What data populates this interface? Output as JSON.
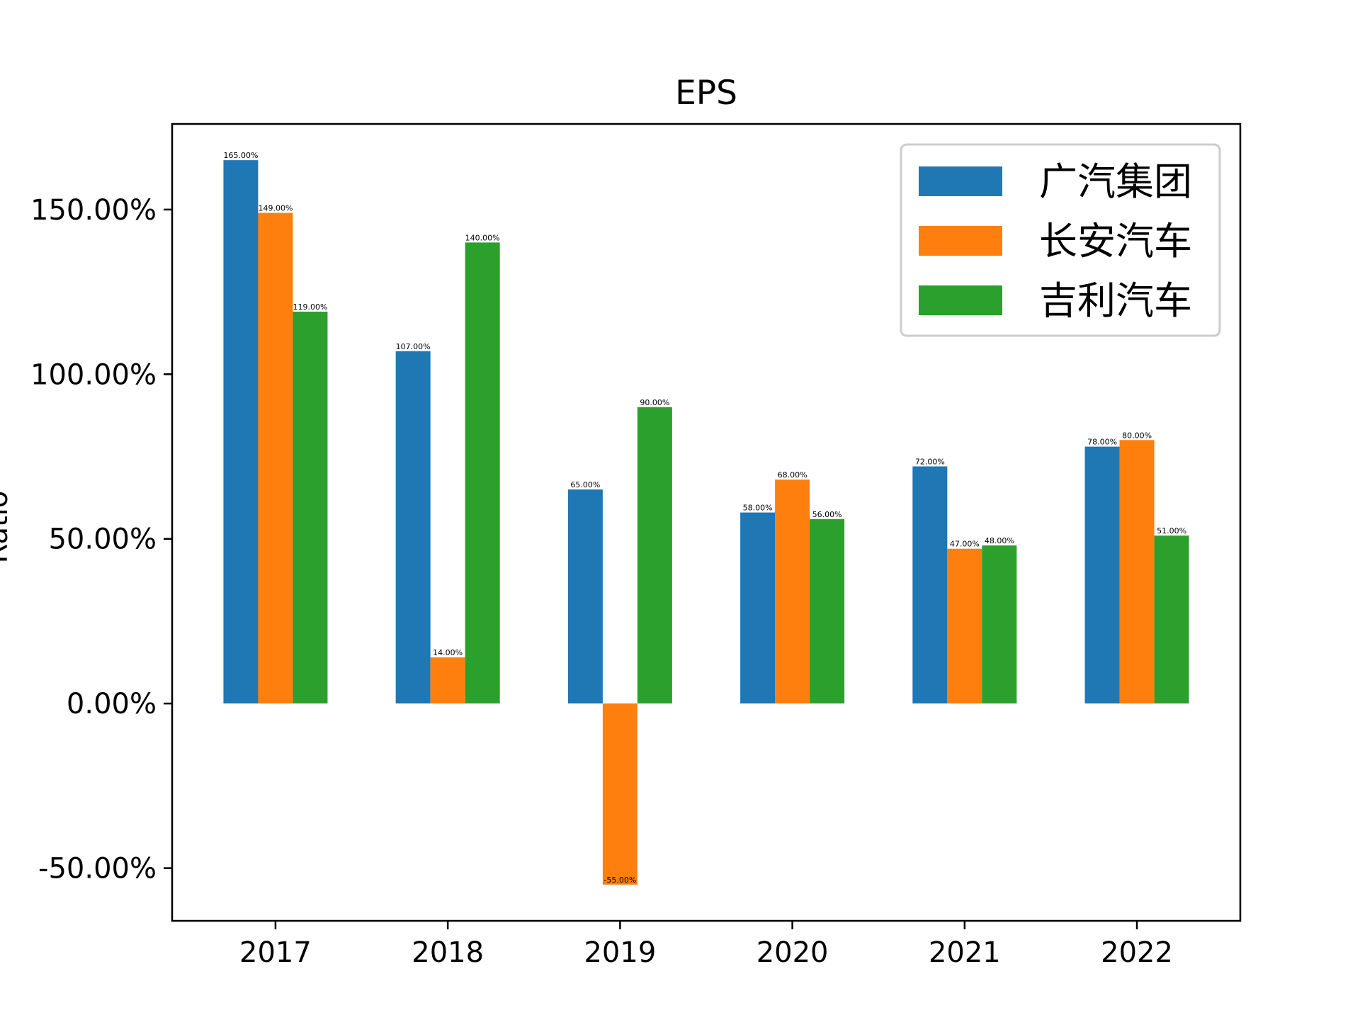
{
  "chart_data": {
    "type": "bar",
    "title": "EPS",
    "xlabel": "",
    "ylabel": "Ratio",
    "categories": [
      "2017",
      "2018",
      "2019",
      "2020",
      "2021",
      "2022"
    ],
    "series": [
      {
        "name": "广汽集团",
        "color": "#1f77b4",
        "values": [
          165,
          107,
          65,
          58,
          72,
          78
        ]
      },
      {
        "name": "长安汽车",
        "color": "#ff7f0e",
        "values": [
          149,
          14,
          -55,
          68,
          47,
          80
        ]
      },
      {
        "name": "吉利汽车",
        "color": "#2ca02c",
        "values": [
          119,
          140,
          90,
          56,
          48,
          51
        ]
      }
    ],
    "ylim": [
      -66,
      176
    ],
    "yticks": [
      -50,
      0,
      50,
      100,
      150
    ],
    "ytick_labels": [
      "-50.00%",
      "0.00%",
      "50.00%",
      "100.00%",
      "150.00%"
    ],
    "data_label_format": "percent-2dp",
    "grid": false,
    "legend_position": "top-right"
  }
}
